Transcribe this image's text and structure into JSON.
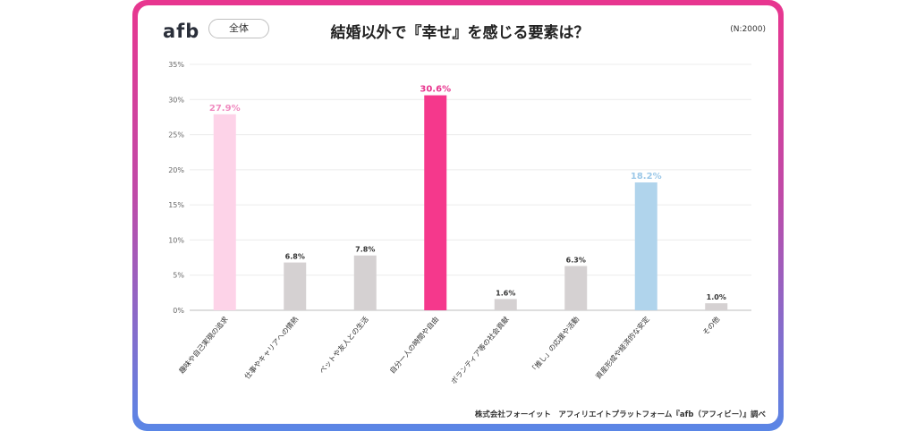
{
  "header": {
    "logo": "afb",
    "filter_label": "全体",
    "title": "結婚以外で『幸せ』を感じる要素は？",
    "sample_size": "(N:2000)"
  },
  "footer": {
    "source": "株式会社フォーイット　アフィリエイトプラットフォーム『afb（アフィビー）』調べ"
  },
  "chart_data": {
    "type": "bar",
    "title": "結婚以外で『幸せ』を感じる要素は？",
    "categories": [
      "趣味や自己実現の追求",
      "仕事やキャリアへの情熱",
      "ペットや友人との生活",
      "自分一人の時間や自由",
      "ボランティア等の社会貢献",
      "「推し」の応援や活動",
      "資産形成や経済的な安定",
      "その他"
    ],
    "values": [
      27.9,
      6.8,
      7.8,
      30.6,
      1.6,
      6.3,
      18.2,
      1.0
    ],
    "value_labels": [
      "27.9%",
      "6.8%",
      "7.8%",
      "30.6%",
      "1.6%",
      "6.3%",
      "18.2%",
      "1.0%"
    ],
    "colors": [
      "#fdd3e8",
      "#d5d1d2",
      "#d5d1d2",
      "#f5388c",
      "#d5d1d2",
      "#d5d1d2",
      "#b0d4ec",
      "#d5d1d2"
    ],
    "label_colors": [
      "#f08cc0",
      "#333333",
      "#333333",
      "#e8368f",
      "#333333",
      "#333333",
      "#9cc8e8",
      "#333333"
    ],
    "yticks": [
      "0%",
      "5%",
      "10%",
      "15%",
      "20%",
      "25%",
      "30%",
      "35%"
    ],
    "ylim": [
      0,
      35
    ],
    "grid": true
  }
}
